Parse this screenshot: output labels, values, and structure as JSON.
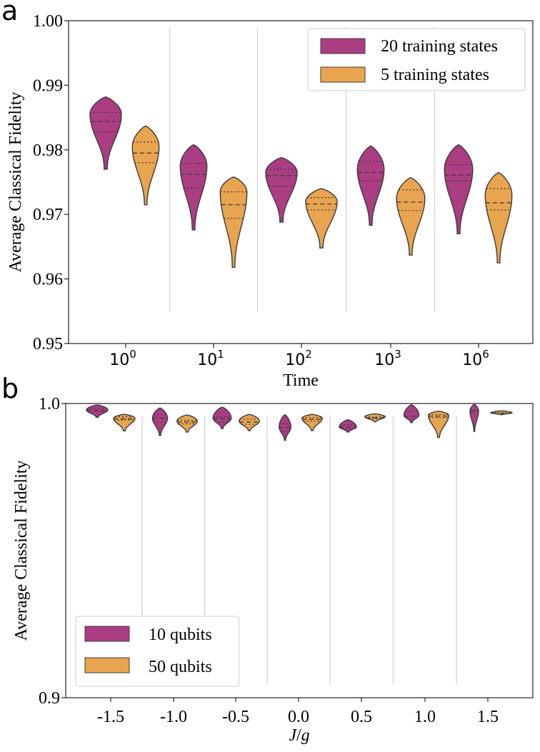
{
  "panels": {
    "a": "a",
    "b": "b"
  },
  "colors": {
    "purple": "#ab3d82",
    "orange": "#e8a44f",
    "edge": "#3c3c3c",
    "sep": "#d9d9d9"
  },
  "chart_data": [
    {
      "type": "violin",
      "panel": "a",
      "title": "",
      "xlabel": "Time",
      "ylabel": "Average Classical Fidelity",
      "ylim": [
        0.95,
        1.0
      ],
      "y_ticks": [
        "0.95",
        "0.96",
        "0.97",
        "0.98",
        "0.99",
        "1.00"
      ],
      "categories": [
        {
          "base": "10",
          "exp": "0"
        },
        {
          "base": "10",
          "exp": "1"
        },
        {
          "base": "10",
          "exp": "2"
        },
        {
          "base": "10",
          "exp": "3"
        },
        {
          "base": "10",
          "exp": "6"
        }
      ],
      "legend": {
        "position": "top-right",
        "entries": [
          "20 training states",
          "5 training states"
        ]
      },
      "series": [
        {
          "name": "20 training states",
          "color": "purple",
          "violins": [
            {
              "min": 0.977,
              "max": 0.9882,
              "q1": 0.9828,
              "median": 0.9844,
              "q3": 0.9858,
              "peak": 0.9855,
              "w": 1.0
            },
            {
              "min": 0.9676,
              "max": 0.9808,
              "q1": 0.9741,
              "median": 0.9762,
              "q3": 0.9779,
              "peak": 0.9775,
              "w": 0.85
            },
            {
              "min": 0.9688,
              "max": 0.9788,
              "q1": 0.9743,
              "median": 0.976,
              "q3": 0.977,
              "peak": 0.9765,
              "w": 1.0
            },
            {
              "min": 0.9683,
              "max": 0.9806,
              "q1": 0.9752,
              "median": 0.9765,
              "q3": 0.9782,
              "peak": 0.977,
              "w": 0.85
            },
            {
              "min": 0.967,
              "max": 0.9808,
              "q1": 0.9752,
              "median": 0.9761,
              "q3": 0.9777,
              "peak": 0.977,
              "w": 0.9
            }
          ]
        },
        {
          "name": "5 training states",
          "color": "orange",
          "violins": [
            {
              "min": 0.9715,
              "max": 0.9837,
              "q1": 0.978,
              "median": 0.9795,
              "q3": 0.9812,
              "peak": 0.9805,
              "w": 0.85
            },
            {
              "min": 0.9618,
              "max": 0.9758,
              "q1": 0.9694,
              "median": 0.9715,
              "q3": 0.9735,
              "peak": 0.9735,
              "w": 0.85
            },
            {
              "min": 0.9648,
              "max": 0.974,
              "q1": 0.9707,
              "median": 0.9716,
              "q3": 0.9726,
              "peak": 0.972,
              "w": 1.0
            },
            {
              "min": 0.9637,
              "max": 0.9757,
              "q1": 0.9706,
              "median": 0.9719,
              "q3": 0.9738,
              "peak": 0.9725,
              "w": 0.9
            },
            {
              "min": 0.9625,
              "max": 0.9765,
              "q1": 0.9707,
              "median": 0.9718,
              "q3": 0.974,
              "peak": 0.973,
              "w": 0.85
            }
          ]
        }
      ]
    },
    {
      "type": "violin",
      "panel": "b",
      "title": "",
      "xlabel": "J/g",
      "ylabel": "Average Classical Fidelity",
      "ylim": [
        0.9,
        1.0
      ],
      "y_ticks": [
        "0.9",
        "1.0"
      ],
      "categories": [
        "-1.5",
        "-1.0",
        "-0.5",
        "0.0",
        "0.5",
        "1.0",
        "1.5"
      ],
      "legend": {
        "position": "bottom-left",
        "entries": [
          "10 qubits",
          "50 qubits"
        ]
      },
      "series": [
        {
          "name": "10 qubits",
          "color": "purple",
          "violins": [
            {
              "min": 0.9953,
              "max": 0.9995,
              "q1": 0.9973,
              "median": 0.9977,
              "q3": 0.9984,
              "peak": 0.9978,
              "w": 1.0
            },
            {
              "min": 0.9892,
              "max": 0.9985,
              "q1": 0.9935,
              "median": 0.995,
              "q3": 0.9963,
              "peak": 0.995,
              "w": 0.7
            },
            {
              "min": 0.9915,
              "max": 0.9988,
              "q1": 0.9937,
              "median": 0.9948,
              "q3": 0.9954,
              "peak": 0.995,
              "w": 0.85
            },
            {
              "min": 0.9875,
              "max": 0.9962,
              "q1": 0.9905,
              "median": 0.9918,
              "q3": 0.9932,
              "peak": 0.992,
              "w": 0.55
            },
            {
              "min": 0.9903,
              "max": 0.9945,
              "q1": 0.9913,
              "median": 0.992,
              "q3": 0.9928,
              "peak": 0.992,
              "w": 0.8
            },
            {
              "min": 0.9935,
              "max": 0.9996,
              "q1": 0.9942,
              "median": 0.9956,
              "q3": 0.9973,
              "peak": 0.996,
              "w": 0.7
            },
            {
              "min": 0.9905,
              "max": 0.9997,
              "q1": 0.9965,
              "median": 0.9974,
              "q3": 0.9977,
              "peak": 0.9975,
              "w": 0.4
            }
          ]
        },
        {
          "name": "50 qubits",
          "color": "orange",
          "violins": [
            {
              "min": 0.9907,
              "max": 0.9963,
              "q1": 0.9944,
              "median": 0.9948,
              "q3": 0.9955,
              "peak": 0.995,
              "w": 1.0
            },
            {
              "min": 0.9903,
              "max": 0.9961,
              "q1": 0.9931,
              "median": 0.9937,
              "q3": 0.9943,
              "peak": 0.994,
              "w": 0.95
            },
            {
              "min": 0.9908,
              "max": 0.9963,
              "q1": 0.9929,
              "median": 0.9937,
              "q3": 0.9947,
              "peak": 0.994,
              "w": 0.95
            },
            {
              "min": 0.9908,
              "max": 0.9963,
              "q1": 0.994,
              "median": 0.9946,
              "q3": 0.9951,
              "peak": 0.995,
              "w": 0.95
            },
            {
              "min": 0.9938,
              "max": 0.9965,
              "q1": 0.9948,
              "median": 0.9951,
              "q3": 0.9954,
              "peak": 0.9955,
              "w": 0.95
            },
            {
              "min": 0.9885,
              "max": 0.9974,
              "q1": 0.9952,
              "median": 0.9957,
              "q3": 0.9962,
              "peak": 0.996,
              "w": 0.95
            },
            {
              "min": 0.9962,
              "max": 0.9975,
              "q1": 0.9964,
              "median": 0.9966,
              "q3": 0.9969,
              "peak": 0.9968,
              "w": 1.0
            }
          ]
        }
      ]
    }
  ]
}
